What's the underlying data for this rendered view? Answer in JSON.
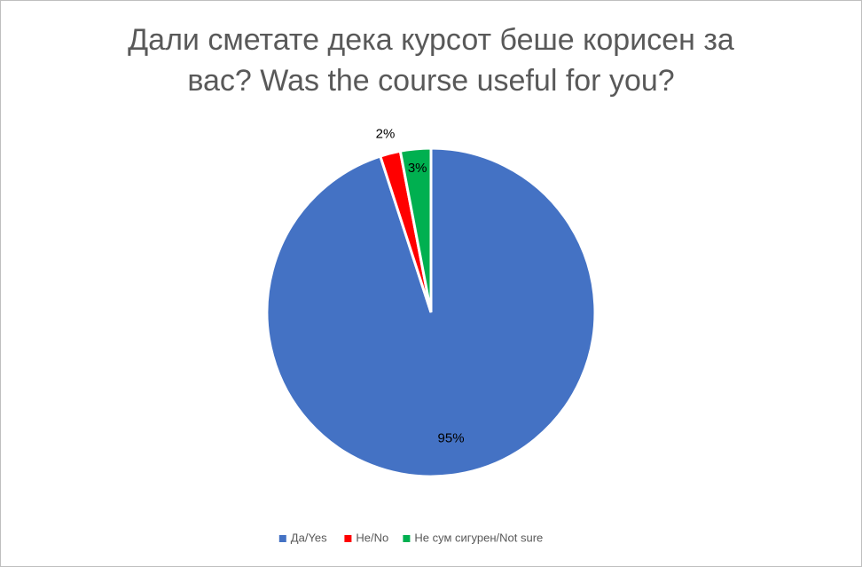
{
  "chart_data": {
    "type": "pie",
    "title": "Дали сметате дека курсот беше корисен за вас? Was the course useful for you?",
    "categories": [
      "Да/Yes",
      "Не/No",
      "Не сум сигурен/Not sure"
    ],
    "values": [
      95,
      2,
      3
    ],
    "value_labels": [
      "95%",
      "2%",
      "3%"
    ],
    "colors": [
      "#4472c4",
      "#ff0000",
      "#00b050"
    ],
    "legend": "bottom"
  }
}
